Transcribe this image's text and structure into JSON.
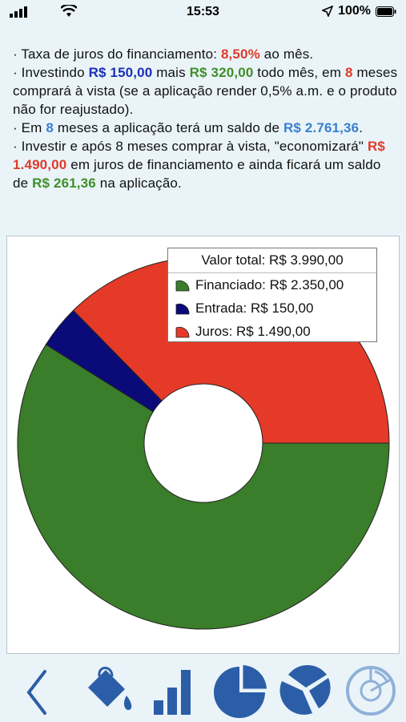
{
  "status": {
    "time": "15:53",
    "battery": "100%"
  },
  "info": {
    "line1_prefix": "·  Taxa de juros do financiamento: ",
    "line1_rate": "8,50%",
    "line1_suffix": " ao mês.",
    "line2_prefix": "·  Investindo ",
    "line2_amount1": "R$ 150,00",
    "line2_mid": " mais ",
    "line2_amount2": "R$ 320,00",
    "line2_mid2": " todo mês, em ",
    "line2_months": "8",
    "line2_suffix": " meses comprará à vista (se a aplicação render 0,5% a.m. e o produto não for reajustado).",
    "line3_prefix": "·  Em ",
    "line3_months": "8",
    "line3_mid": " meses a aplicação terá um saldo de ",
    "line3_amount": "R$ 2.761,36",
    "line3_suffix": ".",
    "line4_prefix": "·  Investir e após 8 meses comprar à vista, \"economizará\" ",
    "line4_amount1": "R$ 1.490,00",
    "line4_mid": " em juros de financiamento e ainda ficará um saldo de ",
    "line4_amount2": "R$ 261,36",
    "line4_suffix": " na aplicação."
  },
  "chart_data": {
    "type": "pie",
    "title": "Valor total: R$ 3.990,00",
    "series": [
      {
        "name": "Financiado: R$ 2.350,00",
        "value": 2350,
        "color": "#3a7d2a"
      },
      {
        "name": "Entrada: R$ 150,00",
        "value": 150,
        "color": "#0a0a78"
      },
      {
        "name": "Juros: R$ 1.490,00",
        "value": 1490,
        "color": "#e53a28"
      }
    ],
    "legend": "top-right"
  },
  "toolbar": {
    "buttons": [
      {
        "icon": "back-chevron-icon"
      },
      {
        "icon": "paint-bucket-icon"
      },
      {
        "icon": "bar-chart-icon"
      },
      {
        "icon": "pie-chart-icon"
      },
      {
        "icon": "exploded-pie-icon"
      },
      {
        "icon": "donut-chart-icon"
      }
    ],
    "accent": "#2c5ea8"
  }
}
